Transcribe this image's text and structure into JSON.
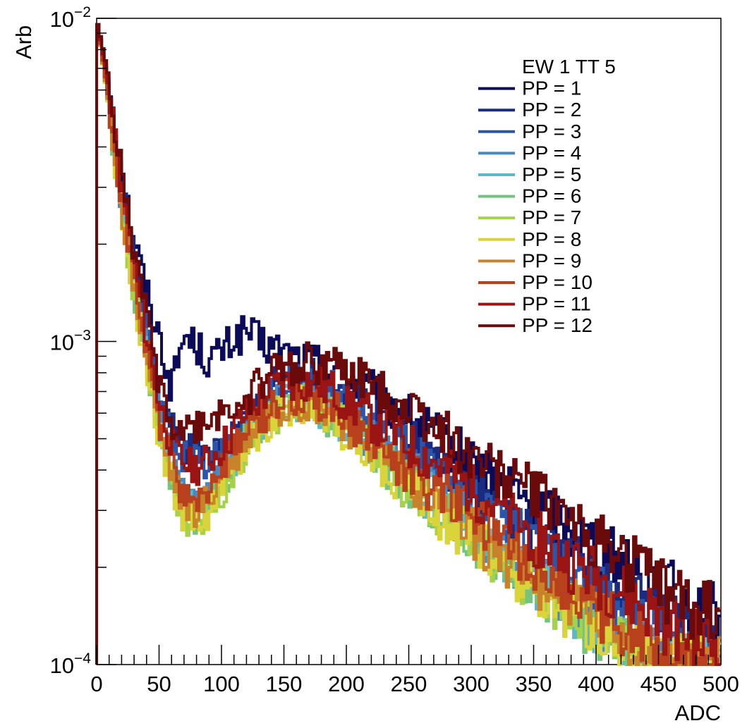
{
  "chart_data": {
    "type": "line",
    "xlabel": "ADC",
    "ylabel": "Arb",
    "xlim": [
      0,
      500
    ],
    "ylim": [
      0.0001,
      0.01
    ],
    "yscale": "log",
    "grid": false,
    "x_ticks": [
      "0",
      "50",
      "100",
      "150",
      "200",
      "250",
      "300",
      "350",
      "400",
      "450",
      "500"
    ],
    "y_ticks": [
      {
        "base": "10",
        "exp": "−4",
        "value": 0.0001
      },
      {
        "base": "10",
        "exp": "−3",
        "value": 0.001
      },
      {
        "base": "10",
        "exp": "−2",
        "value": 0.01
      }
    ],
    "legend": {
      "title": "EW 1 TT 5",
      "placement": "top-right"
    },
    "x": [
      0,
      10,
      20,
      30,
      40,
      50,
      60,
      70,
      80,
      90,
      100,
      110,
      120,
      130,
      140,
      150,
      160,
      170,
      180,
      190,
      200,
      220,
      240,
      260,
      280,
      300,
      320,
      340,
      360,
      380,
      400,
      420,
      440,
      460,
      480,
      500
    ],
    "series": [
      {
        "name": "PP = 1",
        "color": "#0b0b5a",
        "values": [
          0.01,
          0.0062,
          0.0034,
          0.0021,
          0.00145,
          0.00105,
          0.00072,
          0.00105,
          0.00098,
          0.00087,
          0.00093,
          0.00102,
          0.00108,
          0.001,
          0.00096,
          0.00092,
          0.00089,
          0.00087,
          0.00085,
          0.00081,
          0.00078,
          0.0007,
          0.00062,
          0.00055,
          0.00049,
          0.00043,
          0.00038,
          0.00034,
          0.0003,
          0.00027,
          0.00024,
          0.00021,
          0.00019,
          0.00017,
          0.000155,
          0.00014
        ]
      },
      {
        "name": "PP = 2",
        "color": "#1a2b82",
        "values": [
          0.01,
          0.006,
          0.003,
          0.0018,
          0.0011,
          0.00072,
          0.00054,
          0.00047,
          0.00045,
          0.00045,
          0.00047,
          0.00051,
          0.00058,
          0.00065,
          0.00072,
          0.00077,
          0.0008,
          0.0008,
          0.00078,
          0.00074,
          0.0007,
          0.00061,
          0.00053,
          0.00046,
          0.0004,
          0.00035,
          0.00031,
          0.00027,
          0.00024,
          0.00021,
          0.00019,
          0.00017,
          0.00015,
          0.000135,
          0.00012,
          0.00011
        ]
      },
      {
        "name": "PP = 3",
        "color": "#2a55a8",
        "values": [
          0.01,
          0.0058,
          0.0029,
          0.0017,
          0.00105,
          0.00068,
          0.00051,
          0.00045,
          0.00043,
          0.00043,
          0.00045,
          0.00049,
          0.00055,
          0.00062,
          0.00068,
          0.00073,
          0.00075,
          0.00075,
          0.00073,
          0.0007,
          0.00066,
          0.00058,
          0.0005,
          0.00043,
          0.00037,
          0.00032,
          0.00028,
          0.00025,
          0.00022,
          0.00019,
          0.00017,
          0.00015,
          0.000135,
          0.00012,
          0.00011,
          0.0001
        ]
      },
      {
        "name": "PP = 4",
        "color": "#4a88c2",
        "values": [
          0.01,
          0.0055,
          0.0027,
          0.00155,
          0.00095,
          0.00058,
          0.00042,
          0.00034,
          0.00032,
          0.00034,
          0.00039,
          0.00045,
          0.00052,
          0.00058,
          0.00063,
          0.00066,
          0.00068,
          0.00067,
          0.00065,
          0.00062,
          0.00058,
          0.0005,
          0.00043,
          0.00037,
          0.00032,
          0.00027,
          0.00024,
          0.00021,
          0.00018,
          0.00016,
          0.00014,
          0.000125,
          0.00011,
          0.0001,
          0.0001,
          0.0001
        ]
      },
      {
        "name": "PP = 5",
        "color": "#5cb8c8",
        "values": [
          0.01,
          0.0054,
          0.0026,
          0.0015,
          0.00092,
          0.00055,
          0.00039,
          0.00031,
          0.0003,
          0.00032,
          0.00037,
          0.00043,
          0.0005,
          0.00056,
          0.00061,
          0.00064,
          0.00066,
          0.00065,
          0.00063,
          0.0006,
          0.00056,
          0.00048,
          0.00041,
          0.00035,
          0.0003,
          0.00026,
          0.00023,
          0.0002,
          0.00017,
          0.00015,
          0.000135,
          0.00012,
          0.000105,
          0.0001,
          0.0001,
          0.0001
        ]
      },
      {
        "name": "PP = 6",
        "color": "#74c47e",
        "values": [
          0.01,
          0.0053,
          0.0025,
          0.00145,
          0.0009,
          0.00053,
          0.00038,
          0.0003,
          0.00029,
          0.00031,
          0.00036,
          0.00042,
          0.00049,
          0.00055,
          0.0006,
          0.00063,
          0.00065,
          0.00064,
          0.00062,
          0.00059,
          0.00055,
          0.00047,
          0.0004,
          0.00034,
          0.00029,
          0.00025,
          0.00022,
          0.00019,
          0.00017,
          0.00015,
          0.00013,
          0.000115,
          0.0001,
          0.0001,
          0.0001,
          0.0001
        ]
      },
      {
        "name": "PP = 7",
        "color": "#a6d24a",
        "values": [
          0.01,
          0.0053,
          0.0025,
          0.00145,
          0.00088,
          0.00052,
          0.00037,
          0.00029,
          0.00028,
          0.0003,
          0.00035,
          0.00041,
          0.00048,
          0.00054,
          0.00059,
          0.00062,
          0.00064,
          0.00063,
          0.00061,
          0.00058,
          0.00054,
          0.00046,
          0.00039,
          0.00033,
          0.00029,
          0.00025,
          0.00022,
          0.00019,
          0.00017,
          0.00015,
          0.00013,
          0.000115,
          0.0001,
          0.0001,
          0.0001,
          0.0001
        ]
      },
      {
        "name": "PP = 8",
        "color": "#d8d43a",
        "values": [
          0.01,
          0.0052,
          0.0025,
          0.0014,
          0.00087,
          0.00052,
          0.00037,
          0.00029,
          0.00028,
          0.0003,
          0.00035,
          0.00041,
          0.00048,
          0.00054,
          0.00059,
          0.00062,
          0.00064,
          0.00063,
          0.00061,
          0.00058,
          0.00054,
          0.00046,
          0.00039,
          0.00033,
          0.00029,
          0.00025,
          0.00022,
          0.00019,
          0.00017,
          0.00015,
          0.00013,
          0.000115,
          0.000105,
          0.0001,
          0.0001,
          0.0001
        ]
      },
      {
        "name": "PP = 9",
        "color": "#c8822a",
        "values": [
          0.01,
          0.0053,
          0.0026,
          0.00145,
          0.0009,
          0.00054,
          0.00038,
          0.00031,
          0.0003,
          0.00032,
          0.00037,
          0.00043,
          0.0005,
          0.00056,
          0.00061,
          0.00064,
          0.00066,
          0.00065,
          0.00063,
          0.0006,
          0.00056,
          0.00048,
          0.00041,
          0.00035,
          0.0003,
          0.00026,
          0.00023,
          0.0002,
          0.00018,
          0.00016,
          0.00014,
          0.000125,
          0.00011,
          0.0001,
          0.0001,
          0.0001
        ]
      },
      {
        "name": "PP = 10",
        "color": "#b8401c",
        "values": [
          0.01,
          0.0055,
          0.0027,
          0.00155,
          0.00095,
          0.00058,
          0.00042,
          0.00034,
          0.00033,
          0.00035,
          0.0004,
          0.00046,
          0.00053,
          0.00059,
          0.00064,
          0.00067,
          0.00069,
          0.00068,
          0.00066,
          0.00063,
          0.00059,
          0.00051,
          0.00044,
          0.00038,
          0.00033,
          0.00029,
          0.00025,
          0.00022,
          0.00019,
          0.00017,
          0.00015,
          0.000135,
          0.00012,
          0.00011,
          0.0001,
          0.0001
        ]
      },
      {
        "name": "PP = 11",
        "color": "#9a1414",
        "values": [
          0.01,
          0.006,
          0.003,
          0.00175,
          0.00105,
          0.00065,
          0.00048,
          0.00042,
          0.00041,
          0.00043,
          0.00047,
          0.00053,
          0.0006,
          0.00066,
          0.00071,
          0.00074,
          0.00076,
          0.00075,
          0.00073,
          0.0007,
          0.00066,
          0.00058,
          0.00051,
          0.00045,
          0.0004,
          0.00035,
          0.00031,
          0.00027,
          0.00024,
          0.00021,
          0.00019,
          0.00017,
          0.00015,
          0.000135,
          0.00012,
          0.000115
        ]
      },
      {
        "name": "PP = 12",
        "color": "#6a0a0a",
        "values": [
          0.01,
          0.0065,
          0.0033,
          0.0019,
          0.0012,
          0.00075,
          0.00056,
          0.00053,
          0.00054,
          0.00057,
          0.0006,
          0.00063,
          0.00068,
          0.00074,
          0.0008,
          0.00084,
          0.00086,
          0.00086,
          0.00085,
          0.00083,
          0.0008,
          0.00073,
          0.00066,
          0.00059,
          0.00052,
          0.00046,
          0.00041,
          0.00036,
          0.00032,
          0.00028,
          0.00025,
          0.00022,
          0.00019,
          0.00017,
          0.000155,
          0.00014
        ]
      }
    ]
  }
}
